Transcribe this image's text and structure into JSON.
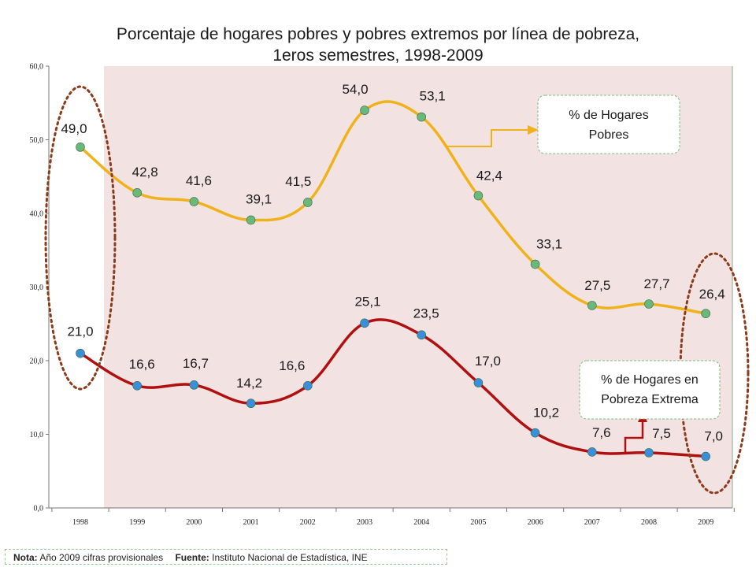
{
  "chart_data": {
    "type": "line",
    "title_line1": "Porcentaje de hogares pobres y pobres extremos por línea de pobreza,",
    "title_line2": "1eros semestres, 1998-2009",
    "categories": [
      "1998",
      "1999",
      "2000",
      "2001",
      "2002",
      "2003",
      "2004",
      "2005",
      "2006",
      "2007",
      "2008",
      "2009"
    ],
    "ylim": [
      0,
      60
    ],
    "yticks": [
      "0,0",
      "10,0",
      "20,0",
      "30,0",
      "40,0",
      "50,0",
      "60,0"
    ],
    "series": [
      {
        "name": "% de Hogares Pobres",
        "name_line1": "% de Hogares",
        "name_line2": "Pobres",
        "values": [
          49.0,
          42.8,
          41.6,
          39.1,
          41.5,
          54.0,
          53.1,
          42.4,
          33.1,
          27.5,
          27.7,
          26.4
        ],
        "labels": [
          "49,0",
          "42,8",
          "41,6",
          "39,1",
          "41,5",
          "54,0",
          "53,1",
          "42,4",
          "33,1",
          "27,5",
          "27,7",
          "26,4"
        ],
        "line_color": "#f0b21a",
        "marker_color": "#6ab87a"
      },
      {
        "name": "% de Hogares en Pobreza Extrema",
        "name_line1": "% de Hogares en",
        "name_line2": "Pobreza Extrema",
        "values": [
          21.0,
          16.6,
          16.7,
          14.2,
          16.6,
          25.1,
          23.5,
          17.0,
          10.2,
          7.6,
          7.5,
          7.0
        ],
        "labels": [
          "21,0",
          "16,6",
          "16,7",
          "14,2",
          "16,6",
          "25,1",
          "23,5",
          "17,0",
          "10,2",
          "7,6",
          "7,5",
          "7,0"
        ],
        "line_color": "#b01010",
        "marker_color": "#3a90d8"
      }
    ],
    "plot_background": "#f2e2e2",
    "highlight_color": "#8b3a1a",
    "grid": false
  },
  "footer": {
    "note_label": "Nota:",
    "note_text": "Año 2009 cifras provisionales",
    "source_label": "Fuente:",
    "source_text": "Instituto Nacional de Estadística, INE"
  }
}
